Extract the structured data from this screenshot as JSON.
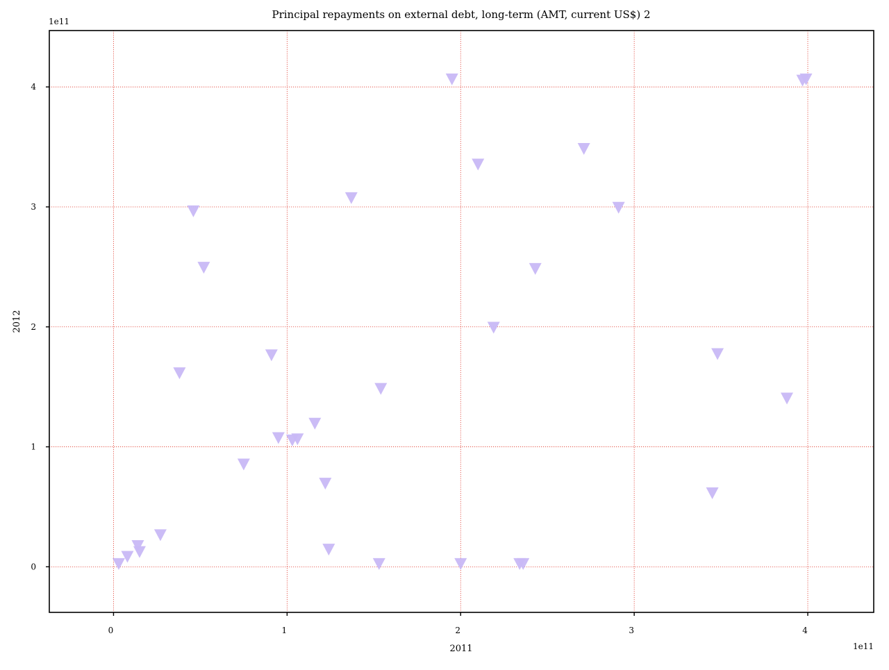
{
  "chart_data": {
    "type": "scatter",
    "title": "Principal repayments on external debt, long-term (AMT, current US$) 2",
    "xlabel": "2011",
    "ylabel": "2012",
    "x_offset_label": "1e11",
    "y_offset_label": "1e11",
    "xlim": [
      -37000000000.0,
      438000000000.0
    ],
    "ylim": [
      -38000000000.0,
      447000000000.0
    ],
    "xticks": [
      0,
      100000000000.0,
      200000000000.0,
      300000000000.0,
      400000000000.0
    ],
    "yticks": [
      0,
      100000000000.0,
      200000000000.0,
      300000000000.0,
      400000000000.0
    ],
    "xtick_labels": [
      "0",
      "1",
      "2",
      "3",
      "4"
    ],
    "ytick_labels": [
      "0",
      "1",
      "2",
      "3",
      "4"
    ],
    "grid": true,
    "marker": "triangle-down",
    "marker_color": "#c8b8f5",
    "grid_color": "#e03b2f",
    "points": [
      {
        "x": 3000000000.0,
        "y": 2000000000.0
      },
      {
        "x": 8000000000.0,
        "y": 8000000000.0
      },
      {
        "x": 14000000000.0,
        "y": 17000000000.0
      },
      {
        "x": 15000000000.0,
        "y": 12000000000.0
      },
      {
        "x": 27000000000.0,
        "y": 26000000000.0
      },
      {
        "x": 38000000000.0,
        "y": 161000000000.0
      },
      {
        "x": 46000000000.0,
        "y": 296000000000.0
      },
      {
        "x": 52000000000.0,
        "y": 249000000000.0
      },
      {
        "x": 75000000000.0,
        "y": 85000000000.0
      },
      {
        "x": 91000000000.0,
        "y": 176000000000.0
      },
      {
        "x": 95000000000.0,
        "y": 107000000000.0
      },
      {
        "x": 103000000000.0,
        "y": 105000000000.0
      },
      {
        "x": 106000000000.0,
        "y": 106000000000.0
      },
      {
        "x": 116000000000.0,
        "y": 119000000000.0
      },
      {
        "x": 122000000000.0,
        "y": 69000000000.0
      },
      {
        "x": 124000000000.0,
        "y": 14000000000.0
      },
      {
        "x": 137000000000.0,
        "y": 307000000000.0
      },
      {
        "x": 153000000000.0,
        "y": 2000000000.0
      },
      {
        "x": 154000000000.0,
        "y": 148000000000.0
      },
      {
        "x": 195000000000.0,
        "y": 406000000000.0
      },
      {
        "x": 200000000000.0,
        "y": 2000000000.0
      },
      {
        "x": 210000000000.0,
        "y": 335000000000.0
      },
      {
        "x": 219000000000.0,
        "y": 199000000000.0
      },
      {
        "x": 234000000000.0,
        "y": 2000000000.0
      },
      {
        "x": 236000000000.0,
        "y": 2000000000.0
      },
      {
        "x": 243000000000.0,
        "y": 248000000000.0
      },
      {
        "x": 271000000000.0,
        "y": 348000000000.0
      },
      {
        "x": 291000000000.0,
        "y": 299000000000.0
      },
      {
        "x": 345000000000.0,
        "y": 61000000000.0
      },
      {
        "x": 348000000000.0,
        "y": 177000000000.0
      },
      {
        "x": 388000000000.0,
        "y": 140000000000.0
      },
      {
        "x": 397000000000.0,
        "y": 405000000000.0
      },
      {
        "x": 399000000000.0,
        "y": 406000000000.0
      }
    ]
  }
}
